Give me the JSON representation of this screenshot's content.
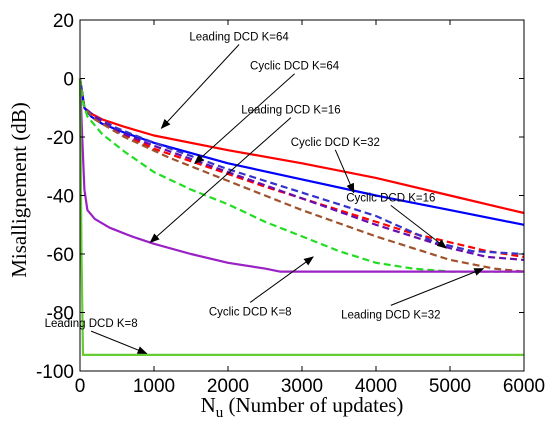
{
  "chart_data": {
    "type": "line",
    "title": "",
    "xlabel_main": "N",
    "xlabel_sub": "u",
    "xlabel_rest": " (Number of updates)",
    "ylabel": "Misallignement (dB)",
    "xlim": [
      0,
      6000
    ],
    "ylim": [
      -100,
      20
    ],
    "xticks": [
      0,
      1000,
      2000,
      3000,
      4000,
      5000,
      6000
    ],
    "yticks": [
      20,
      0,
      -20,
      -40,
      -60,
      -80,
      -100
    ],
    "grid": false,
    "series": [
      {
        "name": "Leading DCD K=64",
        "color": "#ff0000",
        "dash": false,
        "points": [
          [
            0,
            0
          ],
          [
            60,
            -10
          ],
          [
            150,
            -12
          ],
          [
            300,
            -14
          ],
          [
            600,
            -16.5
          ],
          [
            1000,
            -19.5
          ],
          [
            2000,
            -24.5
          ],
          [
            3000,
            -29
          ],
          [
            4000,
            -34
          ],
          [
            5000,
            -40
          ],
          [
            6000,
            -46
          ]
        ]
      },
      {
        "name": "Cyclic DCD K=64",
        "color": "#ff0000",
        "dash": true,
        "points": [
          [
            0,
            0
          ],
          [
            60,
            -10
          ],
          [
            200,
            -13
          ],
          [
            500,
            -18
          ],
          [
            1000,
            -24
          ],
          [
            1700,
            -30
          ],
          [
            2500,
            -37
          ],
          [
            3500,
            -45
          ],
          [
            4500,
            -53
          ],
          [
            5500,
            -59
          ],
          [
            6000,
            -61
          ]
        ]
      },
      {
        "name": "Cyclic DCD K=32",
        "color": "#0000ff",
        "dash": false,
        "points": [
          [
            0,
            0
          ],
          [
            60,
            -10
          ],
          [
            150,
            -13
          ],
          [
            300,
            -15.5
          ],
          [
            600,
            -18.5
          ],
          [
            1000,
            -22
          ],
          [
            2000,
            -29
          ],
          [
            3000,
            -34.5
          ],
          [
            4000,
            -40
          ],
          [
            5000,
            -45
          ],
          [
            6000,
            -50
          ]
        ]
      },
      {
        "name": "Cyclic DCD K=16",
        "color": "#3333cc",
        "dash": true,
        "points": [
          [
            0,
            0
          ],
          [
            60,
            -10
          ],
          [
            200,
            -13
          ],
          [
            500,
            -17
          ],
          [
            1000,
            -22
          ],
          [
            2000,
            -31
          ],
          [
            3000,
            -39
          ],
          [
            4000,
            -47
          ],
          [
            4800,
            -56
          ],
          [
            5300,
            -59
          ],
          [
            6000,
            -60
          ]
        ]
      },
      {
        "name": "Leading DCD K=32",
        "color": "#6a0dad",
        "dash": true,
        "points": [
          [
            0,
            0
          ],
          [
            60,
            -10
          ],
          [
            200,
            -13
          ],
          [
            500,
            -18
          ],
          [
            1000,
            -23
          ],
          [
            2000,
            -32
          ],
          [
            3000,
            -41
          ],
          [
            4000,
            -50
          ],
          [
            5000,
            -58
          ],
          [
            5500,
            -61
          ],
          [
            6000,
            -62
          ]
        ]
      },
      {
        "name": "",
        "color": "#a0522d",
        "dash": true,
        "points": [
          [
            0,
            0
          ],
          [
            60,
            -10
          ],
          [
            200,
            -14
          ],
          [
            600,
            -20
          ],
          [
            1200,
            -27
          ],
          [
            2000,
            -35
          ],
          [
            3000,
            -45
          ],
          [
            4000,
            -54
          ],
          [
            5000,
            -62
          ],
          [
            5600,
            -65
          ],
          [
            6000,
            -66
          ]
        ]
      },
      {
        "name": "Cyclic DCD K=8",
        "color": "#22dd22",
        "dash": true,
        "points": [
          [
            0,
            0
          ],
          [
            40,
            -8
          ],
          [
            100,
            -13
          ],
          [
            300,
            -19
          ],
          [
            600,
            -25
          ],
          [
            1000,
            -32
          ],
          [
            1500,
            -38
          ],
          [
            2000,
            -43
          ],
          [
            2500,
            -49
          ],
          [
            3000,
            -54
          ],
          [
            3500,
            -59
          ],
          [
            4000,
            -63
          ],
          [
            4500,
            -65
          ],
          [
            5000,
            -66
          ],
          [
            5500,
            -66
          ],
          [
            6000,
            -66
          ]
        ]
      },
      {
        "name": "Leading DCD K=16",
        "color": "#9a22c4",
        "dash": false,
        "points": [
          [
            0,
            0
          ],
          [
            30,
            -20
          ],
          [
            60,
            -38
          ],
          [
            100,
            -45
          ],
          [
            200,
            -48
          ],
          [
            400,
            -51
          ],
          [
            700,
            -54
          ],
          [
            1000,
            -56.5
          ],
          [
            1500,
            -60
          ],
          [
            2000,
            -63
          ],
          [
            2500,
            -65
          ],
          [
            2700,
            -66
          ],
          [
            6000,
            -66
          ]
        ]
      },
      {
        "name": "Leading DCD K=8",
        "color": "#66cc33",
        "dash": false,
        "points": [
          [
            0,
            0
          ],
          [
            20,
            -60
          ],
          [
            40,
            -94.5
          ],
          [
            6000,
            -94.5
          ]
        ]
      }
    ],
    "annotations": [
      {
        "text": "Leading DCD K=64",
        "tx": 2150,
        "ty": 13,
        "ax": 1100,
        "ay": -17
      },
      {
        "text": "Cyclic DCD K=64",
        "tx": 2900,
        "ty": 3,
        "ax": 1550,
        "ay": -29
      },
      {
        "text": "Leading DCD K=16",
        "tx": 2850,
        "ty": -12,
        "ax": 950,
        "ay": -56
      },
      {
        "text": "Cyclic DCD K=32",
        "tx": 3450,
        "ty": -23,
        "ax": 3700,
        "ay": -39
      },
      {
        "text": "Cyclic DCD K=16",
        "tx": 4200,
        "ty": -42,
        "ax": 4950,
        "ay": -58
      },
      {
        "text": "Cyclic DCD K=8",
        "tx": 2300,
        "ty": -81,
        "ax": 3150,
        "ay": -61
      },
      {
        "text": "Leading DCD K=32",
        "tx": 4200,
        "ty": -82,
        "ax": 5450,
        "ay": -65
      },
      {
        "text": "Leading DCD K=8",
        "tx": 150,
        "ty": -85,
        "ax": 900,
        "ay": -94
      }
    ]
  }
}
